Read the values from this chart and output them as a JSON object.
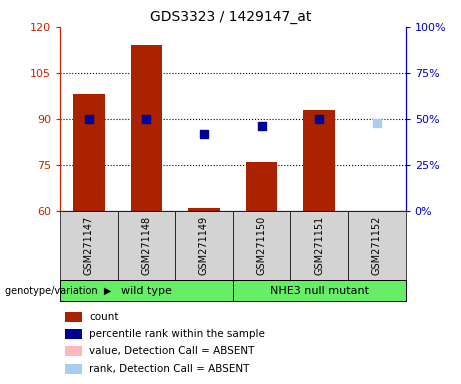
{
  "title": "GDS3323 / 1429147_at",
  "samples": [
    "GSM271147",
    "GSM271148",
    "GSM271149",
    "GSM271150",
    "GSM271151",
    "GSM271152"
  ],
  "groups": [
    {
      "label": "wild type",
      "indices": [
        0,
        1,
        2
      ],
      "color": "#66EE66"
    },
    {
      "label": "NHE3 null mutant",
      "indices": [
        3,
        4,
        5
      ],
      "color": "#66EE66"
    }
  ],
  "count_values": [
    98,
    114,
    61,
    76,
    93,
    60
  ],
  "rank_values": [
    50,
    50,
    42,
    46,
    50,
    48
  ],
  "absent_mask": [
    false,
    false,
    false,
    false,
    false,
    true
  ],
  "bar_color_normal": "#AA2200",
  "bar_color_absent": "#FFB6C1",
  "rank_color_normal": "#000099",
  "rank_color_absent": "#AACCEE",
  "ylim_left": [
    60,
    120
  ],
  "ylim_right": [
    0,
    100
  ],
  "yticks_left": [
    60,
    75,
    90,
    105,
    120
  ],
  "ytick_labels_left": [
    "60",
    "75",
    "90",
    "105",
    "120"
  ],
  "yticks_right_pct": [
    0,
    25,
    50,
    75,
    100
  ],
  "ytick_labels_right": [
    "0%",
    "25%",
    "50%",
    "75%",
    "100%"
  ],
  "bar_width": 0.55,
  "rank_marker_size": 35,
  "grid_color": "black",
  "grid_levels": [
    75,
    90,
    105
  ],
  "left_tick_color": "#CC2200",
  "right_tick_color": "#0000CC",
  "bg_plot": "#FFFFFF",
  "bg_label_area": "#D3D3D3",
  "legend_items": [
    {
      "label": "count",
      "color": "#AA2200"
    },
    {
      "label": "percentile rank within the sample",
      "color": "#000099"
    },
    {
      "label": "value, Detection Call = ABSENT",
      "color": "#FFB6C1"
    },
    {
      "label": "rank, Detection Call = ABSENT",
      "color": "#AACCEE"
    }
  ],
  "fig_width": 4.61,
  "fig_height": 3.84,
  "dpi": 100
}
